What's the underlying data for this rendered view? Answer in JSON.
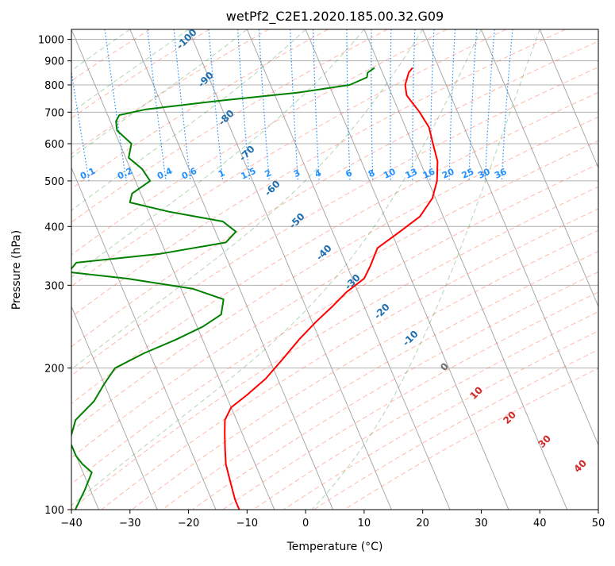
{
  "chart_data": {
    "type": "line",
    "subtype": "skew-t log-p",
    "title": "wetPf2_C2E1.2020.185.00.32.G09",
    "xlabel": "Temperature (°C)",
    "ylabel": "Pressure (hPa)",
    "xlim": [
      -40,
      50
    ],
    "ylim": [
      1050,
      100
    ],
    "y_scale": "log",
    "grid": true,
    "x_ticks": [
      -40,
      -30,
      -20,
      -10,
      0,
      10,
      20,
      30,
      40,
      50
    ],
    "y_ticks": [
      100,
      200,
      300,
      400,
      500,
      600,
      700,
      800,
      900,
      1000
    ],
    "series": [
      {
        "name": "",
        "color": "#ff0000",
        "p": [
          870,
          850,
          800,
          760,
          700,
          650,
          600,
          550,
          500,
          460,
          420,
          390,
          360,
          330,
          310,
          290,
          270,
          250,
          230,
          210,
          190,
          175,
          165,
          155,
          145,
          135,
          125,
          115,
          105,
          100
        ],
        "t": [
          15.5,
          14.5,
          13.0,
          12.5,
          13.5,
          14.0,
          13.5,
          13.0,
          11.5,
          9.5,
          6.0,
          1.5,
          -3.5,
          -6.0,
          -8.0,
          -12.0,
          -15.5,
          -19.5,
          -23.5,
          -27.5,
          -32.0,
          -36.5,
          -40.0,
          -42.0,
          -43.0,
          -44.0,
          -45.0,
          -45.5,
          -46.0,
          -46.0
        ]
      },
      {
        "name": "",
        "color": "#008000",
        "p": [
          870,
          850,
          830,
          800,
          770,
          740,
          710,
          690,
          670,
          640,
          600,
          560,
          530,
          500,
          470,
          450,
          430,
          410,
          390,
          370,
          350,
          335,
          320,
          310,
          295,
          280,
          260,
          245,
          230,
          215,
          200,
          185,
          170,
          155,
          140,
          130,
          125,
          120,
          110,
          100
        ],
        "t": [
          9.0,
          7.5,
          7.0,
          3.5,
          -6.0,
          -20.0,
          -33.0,
          -38.0,
          -39.0,
          -39.5,
          -38.0,
          -39.5,
          -38.0,
          -37.5,
          -41.5,
          -42.5,
          -36.5,
          -28.0,
          -26.5,
          -29.0,
          -41.0,
          -56.0,
          -58.0,
          -48.5,
          -38.0,
          -33.5,
          -35.0,
          -39.0,
          -44.5,
          -51.0,
          -57.0,
          -60.0,
          -63.0,
          -67.5,
          -70.0,
          -70.0,
          -69.5,
          -68.5,
          -71.0,
          -74.0
        ]
      }
    ],
    "annotations": {
      "dry_adiabats": {
        "color": "#ff6347",
        "theta_c": [
          -30,
          -20,
          -10,
          0,
          10,
          20,
          30,
          40,
          50,
          60,
          70,
          80,
          90,
          100,
          110,
          120,
          130,
          140,
          150,
          160,
          170,
          180,
          190,
          200
        ]
      },
      "moist_adiabats": {
        "color": "#228b22",
        "start_t_c": [
          -30,
          -20,
          -10,
          0,
          10,
          20,
          30,
          40
        ]
      },
      "isotherm_labels": {
        "color": "#1f6fb0",
        "labels": [
          "-100",
          "-90",
          "-80",
          "-70",
          "-60",
          "-50",
          "-40",
          "-30",
          "-20",
          "-10"
        ]
      },
      "mixing_ratio_labels": {
        "color": "#1e90ff",
        "labels": [
          "0.1",
          "0.2",
          "0.4",
          "0.6",
          "1",
          "1.5",
          "2",
          "3",
          "4",
          "6",
          "8",
          "10",
          "13",
          "16",
          "20",
          "25",
          "30",
          "36"
        ],
        "values": [
          0.1,
          0.2,
          0.4,
          0.6,
          1,
          1.5,
          2,
          3,
          4,
          6,
          8,
          10,
          13,
          16,
          20,
          25,
          30,
          36
        ]
      },
      "freezing_level_labels": {
        "color": "#d62728",
        "labels": [
          "0",
          "10",
          "20",
          "30",
          "40"
        ]
      }
    }
  }
}
